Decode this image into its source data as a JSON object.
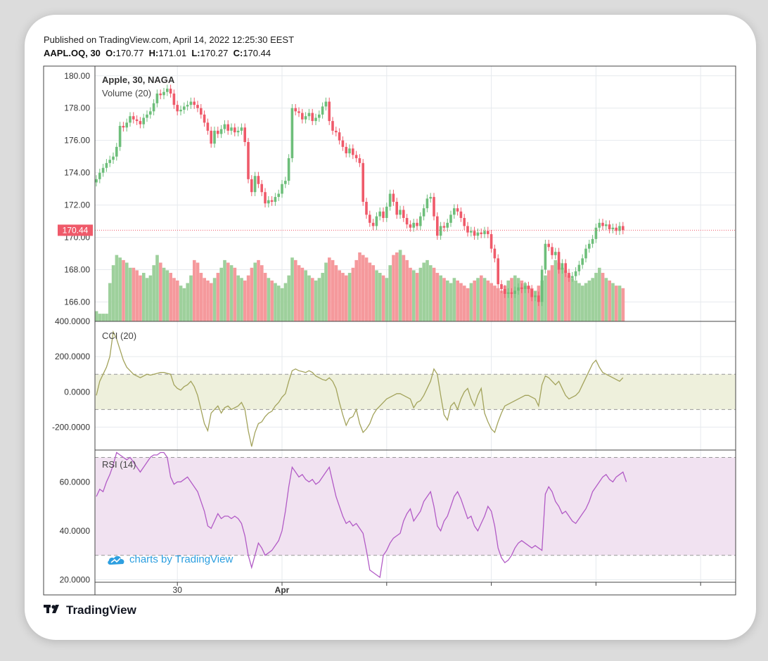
{
  "header": {
    "published": "Published on TradingView.com, April 14, 2022 12:25:30 EEST",
    "symbol": "AAPL.OQ, 30",
    "o_label": "O:",
    "o_value": "170.77",
    "h_label": "H:",
    "h_value": "171.01",
    "l_label": "L:",
    "l_value": "170.27",
    "c_label": "C:",
    "c_value": "170.44"
  },
  "footer": {
    "logo_text": "TradingView",
    "watermark_text": "charts by TradingView"
  },
  "colors": {
    "up": "#6dbe7a",
    "down": "#ef5a6a",
    "volume_up": "#9ed09c",
    "volume_down": "#f5999c",
    "cci_line": "#a3a35c",
    "cci_band": "#eef0dc",
    "rsi_line": "#b25bc6",
    "rsi_band": "#f1e2f1",
    "price_line": "#ef5a6a"
  },
  "chart_data": [
    {
      "type": "candlestick",
      "legend": [
        "Apple, 30, NAGA",
        "Volume (20)"
      ],
      "ylim": [
        164.8,
        180.6
      ],
      "y_ticks": [
        "180.00",
        "178.00",
        "176.00",
        "174.00",
        "172.00",
        "170.00",
        "168.00",
        "166.00"
      ],
      "last_price_label": "170.44",
      "last_price": 170.44,
      "x_ticks": [
        {
          "label": "30",
          "index": 24
        },
        {
          "label": "Apr",
          "index": 55
        },
        {
          "label": "",
          "index": 86
        },
        {
          "label": "",
          "index": 117
        },
        {
          "label": "",
          "index": 148
        },
        {
          "label": "",
          "index": 179
        },
        {
          "label": "",
          "index": 210
        }
      ],
      "closes": [
        173.6,
        174.0,
        174.3,
        174.6,
        174.8,
        175.0,
        175.6,
        176.9,
        176.8,
        177.1,
        177.5,
        177.3,
        177.2,
        177.0,
        177.4,
        177.6,
        177.8,
        178.3,
        178.9,
        178.8,
        179.0,
        179.2,
        178.9,
        178.2,
        177.8,
        177.9,
        178.1,
        178.2,
        178.4,
        178.2,
        178.0,
        177.6,
        177.1,
        176.6,
        175.8,
        176.6,
        176.4,
        176.7,
        177.0,
        176.6,
        176.8,
        176.5,
        176.6,
        176.8,
        175.9,
        173.6,
        172.8,
        173.8,
        173.3,
        172.8,
        172.1,
        172.3,
        172.2,
        172.5,
        172.7,
        173.3,
        173.5,
        174.9,
        178.0,
        177.8,
        177.7,
        177.3,
        177.5,
        177.7,
        177.2,
        177.4,
        177.6,
        178.1,
        178.4,
        177.2,
        176.6,
        176.5,
        176.0,
        175.6,
        175.2,
        175.5,
        175.1,
        174.9,
        174.6,
        172.2,
        171.4,
        170.9,
        170.7,
        171.3,
        171.6,
        171.2,
        171.9,
        172.7,
        172.2,
        171.4,
        171.7,
        171.2,
        170.8,
        170.6,
        170.9,
        170.7,
        171.3,
        171.8,
        172.4,
        172.5,
        171.3,
        170.1,
        170.7,
        170.6,
        170.9,
        171.4,
        171.8,
        171.6,
        171.2,
        170.7,
        170.3,
        170.4,
        170.1,
        170.3,
        170.2,
        170.4,
        170.2,
        169.3,
        168.7,
        167.1,
        166.8,
        166.5,
        166.6,
        166.5,
        166.7,
        166.9,
        166.8,
        167.0,
        166.8,
        166.3,
        166.4,
        166.0,
        168.0,
        169.6,
        169.4,
        168.9,
        169.1,
        168.0,
        168.4,
        167.8,
        167.5,
        167.6,
        167.9,
        168.3,
        168.7,
        169.3,
        169.6,
        169.9,
        170.6,
        170.9,
        170.7,
        170.8,
        170.5,
        170.6,
        170.4,
        170.7,
        170.44
      ],
      "volume_heights": [
        0.04,
        0.03,
        0.03,
        0.03,
        0.15,
        0.22,
        0.26,
        0.25,
        0.24,
        0.23,
        0.21,
        0.21,
        0.2,
        0.18,
        0.19,
        0.17,
        0.18,
        0.22,
        0.26,
        0.23,
        0.21,
        0.2,
        0.19,
        0.17,
        0.16,
        0.14,
        0.13,
        0.15,
        0.18,
        0.24,
        0.23,
        0.19,
        0.17,
        0.16,
        0.15,
        0.17,
        0.19,
        0.21,
        0.24,
        0.23,
        0.22,
        0.21,
        0.18,
        0.17,
        0.16,
        0.18,
        0.21,
        0.23,
        0.24,
        0.22,
        0.19,
        0.17,
        0.16,
        0.15,
        0.14,
        0.13,
        0.15,
        0.18,
        0.25,
        0.24,
        0.22,
        0.21,
        0.2,
        0.18,
        0.17,
        0.16,
        0.17,
        0.19,
        0.23,
        0.25,
        0.24,
        0.22,
        0.2,
        0.19,
        0.18,
        0.19,
        0.21,
        0.24,
        0.27,
        0.26,
        0.25,
        0.23,
        0.22,
        0.2,
        0.19,
        0.18,
        0.17,
        0.22,
        0.26,
        0.27,
        0.28,
        0.26,
        0.24,
        0.21,
        0.2,
        0.19,
        0.21,
        0.23,
        0.24,
        0.22,
        0.21,
        0.19,
        0.18,
        0.17,
        0.16,
        0.15,
        0.17,
        0.16,
        0.15,
        0.14,
        0.13,
        0.15,
        0.16,
        0.17,
        0.18,
        0.17,
        0.16,
        0.15,
        0.14,
        0.13,
        0.12,
        0.14,
        0.16,
        0.17,
        0.18,
        0.17,
        0.16,
        0.15,
        0.14,
        0.13,
        0.12,
        0.14,
        0.16,
        0.18,
        0.2,
        0.22,
        0.24,
        0.23,
        0.21,
        0.2,
        0.18,
        0.17,
        0.16,
        0.15,
        0.14,
        0.15,
        0.16,
        0.17,
        0.19,
        0.21,
        0.19,
        0.17,
        0.16,
        0.15,
        0.14,
        0.14,
        0.13,
        0.14,
        0.2
      ]
    },
    {
      "type": "line",
      "legend": "CCI (20)",
      "ylim": [
        -330,
        400
      ],
      "y_ticks": [
        "400.0000",
        "200.0000",
        "0.0000",
        "-200.0000"
      ],
      "y_tick_values": [
        400,
        200,
        0,
        -200
      ],
      "band": [
        -100,
        100
      ],
      "values": [
        -20,
        60,
        100,
        140,
        200,
        340,
        300,
        240,
        180,
        140,
        120,
        100,
        90,
        80,
        90,
        100,
        95,
        100,
        105,
        110,
        110,
        105,
        100,
        40,
        20,
        10,
        30,
        40,
        60,
        30,
        -20,
        -100,
        -180,
        -220,
        -120,
        -100,
        -80,
        -120,
        -90,
        -80,
        -100,
        -90,
        -80,
        -60,
        -100,
        -220,
        -310,
        -230,
        -180,
        -170,
        -140,
        -120,
        -110,
        -80,
        -60,
        -30,
        -10,
        60,
        120,
        130,
        120,
        115,
        110,
        120,
        110,
        90,
        80,
        70,
        65,
        80,
        60,
        20,
        -60,
        -130,
        -190,
        -150,
        -140,
        -100,
        -180,
        -230,
        -210,
        -180,
        -130,
        -100,
        -80,
        -60,
        -40,
        -30,
        -20,
        -10,
        -10,
        -20,
        -30,
        -40,
        -90,
        -60,
        -50,
        -20,
        20,
        60,
        130,
        100,
        -20,
        -130,
        -160,
        -80,
        -60,
        -100,
        -40,
        0,
        20,
        -40,
        -80,
        -20,
        20,
        -120,
        -170,
        -210,
        -230,
        -170,
        -120,
        -80,
        -70,
        -60,
        -50,
        -40,
        -30,
        -20,
        -20,
        -30,
        -40,
        -80,
        40,
        90,
        80,
        60,
        40,
        60,
        20,
        -20,
        -40,
        -30,
        -20,
        0,
        40,
        80,
        120,
        160,
        180,
        140,
        110,
        100,
        90,
        80,
        70,
        60,
        80
      ]
    },
    {
      "type": "line",
      "legend": "RSI (14)",
      "ylim": [
        19,
        73
      ],
      "y_ticks": [
        "60.0000",
        "40.0000",
        "20.0000"
      ],
      "y_tick_values": [
        60,
        40,
        20
      ],
      "band": [
        30,
        70
      ],
      "values": [
        54,
        57,
        56,
        60,
        63,
        67,
        72,
        71,
        70,
        69,
        70,
        68,
        66,
        64,
        66,
        68,
        70,
        71,
        71,
        72,
        72,
        70,
        62,
        59,
        60,
        60,
        61,
        62,
        60,
        58,
        56,
        52,
        48,
        42,
        41,
        44,
        47,
        45,
        46,
        46,
        45,
        46,
        45,
        43,
        38,
        30,
        25,
        30,
        35,
        33,
        30,
        31,
        32,
        34,
        36,
        40,
        48,
        58,
        66,
        64,
        62,
        63,
        61,
        60,
        61,
        59,
        60,
        62,
        64,
        66,
        60,
        54,
        50,
        46,
        43,
        44,
        42,
        43,
        41,
        39,
        32,
        24,
        23,
        22,
        21,
        30,
        32,
        35,
        37,
        38,
        39,
        44,
        47,
        49,
        44,
        46,
        48,
        52,
        54,
        56,
        50,
        42,
        40,
        44,
        46,
        50,
        54,
        56,
        53,
        49,
        45,
        46,
        42,
        40,
        43,
        46,
        50,
        48,
        42,
        33,
        29,
        27,
        28,
        30,
        33,
        35,
        36,
        35,
        34,
        33,
        34,
        33,
        32,
        55,
        58,
        56,
        52,
        50,
        47,
        48,
        46,
        44,
        43,
        45,
        47,
        49,
        52,
        56,
        58,
        60,
        62,
        63,
        61,
        60,
        62,
        63,
        64,
        60
      ]
    }
  ]
}
